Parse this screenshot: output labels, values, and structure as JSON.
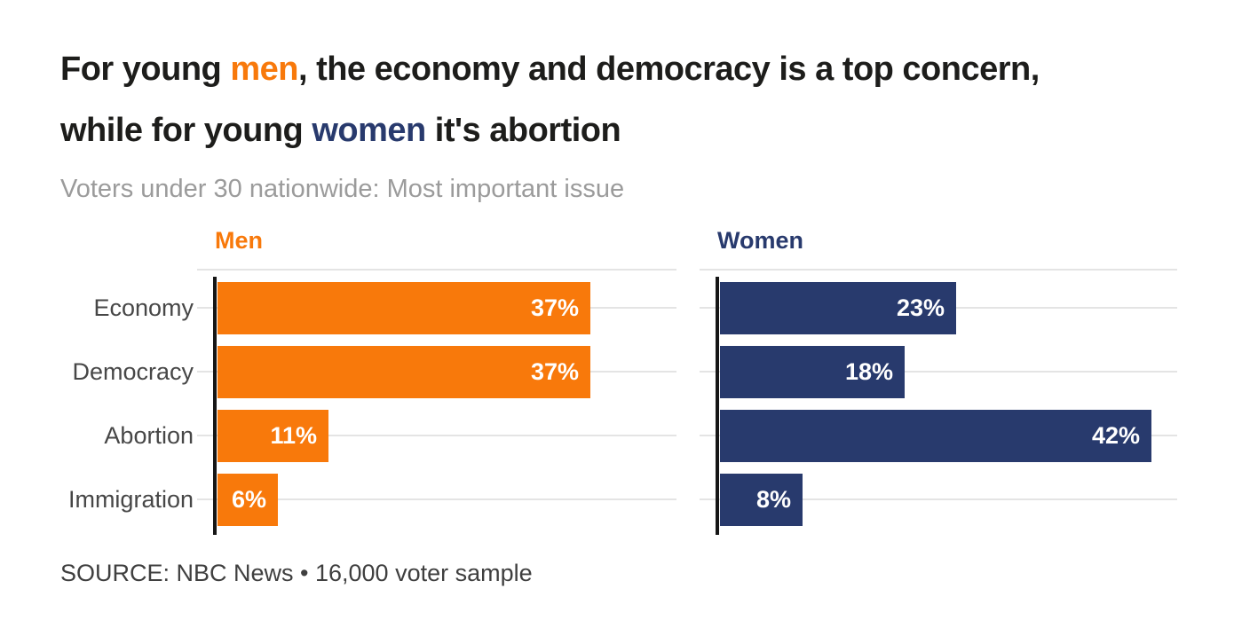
{
  "colors": {
    "background": "#FFFFFF",
    "title_text": "#1D1D1B",
    "subtitle_text": "#9B9B9B",
    "category_label": "#474747",
    "source_text": "#3F3F3F",
    "gridline": "#E4E4E4",
    "axis": "#161616",
    "bar_value_text": "#FFFFFF",
    "men_orange": "#F8790B",
    "women_navy": "#283A6D"
  },
  "title": {
    "line1_pre": "For young ",
    "line1_highlight": "men",
    "line1_post": ", the economy and democracy is a top concern,",
    "line2_pre": "while for young ",
    "line2_highlight": "women",
    "line2_post": " it's abortion"
  },
  "subtitle": "Voters under 30 nationwide: Most important issue",
  "source": "SOURCE: NBC News • 16,000 voter sample",
  "chart_data": {
    "type": "bar",
    "orientation": "horizontal",
    "title": "Voters under 30 nationwide: Most important issue",
    "categories": [
      "Economy",
      "Democracy",
      "Abortion",
      "Immigration"
    ],
    "series": [
      {
        "name": "Men",
        "color": "#F8790B",
        "values": [
          37,
          37,
          11,
          6
        ]
      },
      {
        "name": "Women",
        "color": "#283A6D",
        "values": [
          23,
          18,
          42,
          8
        ]
      }
    ],
    "value_suffix": "%",
    "value_labels": "inside-bar-end",
    "xlim": [
      0,
      46
    ],
    "grid": true,
    "legend_position": "panel-headers"
  }
}
